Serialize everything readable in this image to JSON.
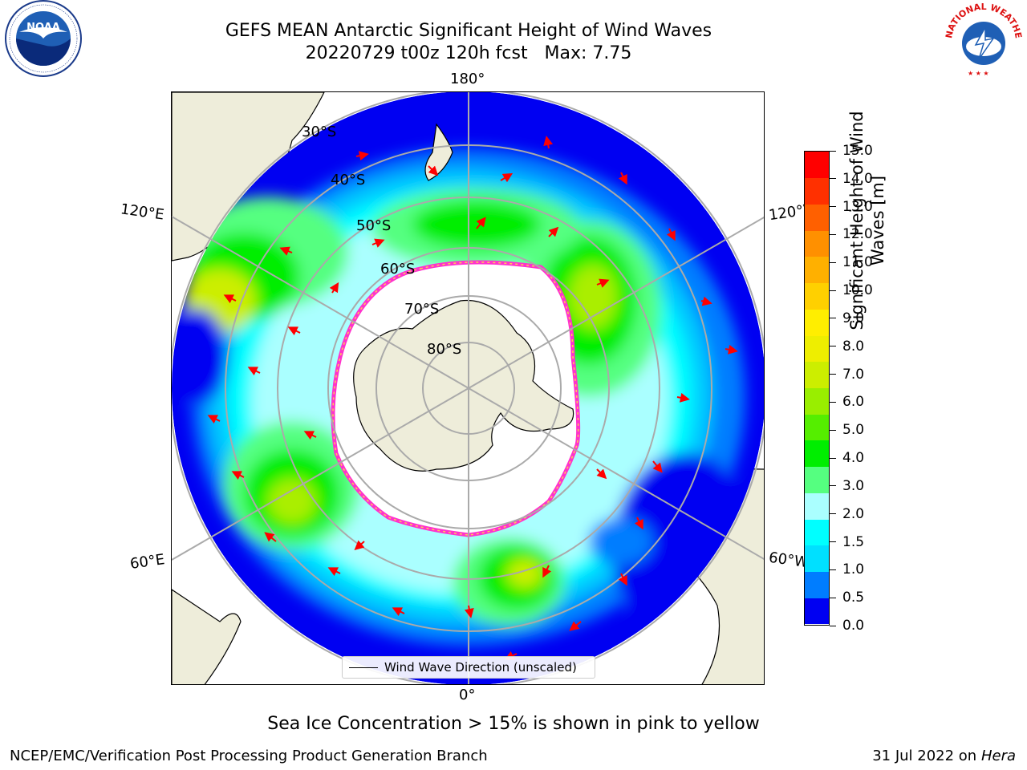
{
  "header": {
    "title": "GEFS MEAN Antarctic Significant Height of Wind Waves",
    "subtitle": "20220729 t00z 120h fcst   Max: 7.75"
  },
  "logos": {
    "left": {
      "name": "noaa-logo",
      "text": "NOAA",
      "ring_text": "NATIONAL OCEANIC AND ATMOSPHERIC ADMINISTRATION · U.S. DEPARTMENT OF COMMERCE"
    },
    "right": {
      "name": "nws-logo",
      "ring_text": "NATIONAL WEATHER SERVICE"
    }
  },
  "map": {
    "lon_labels": {
      "top": "180°",
      "bottom": "0°",
      "upper_left": "120°E",
      "upper_right": "120°W",
      "lower_left": "60°E",
      "lower_right": "60°W"
    },
    "lat_labels": [
      "30°S",
      "40°S",
      "50°S",
      "60°S",
      "70°S",
      "80°S"
    ],
    "legend_label": "Wind Wave Direction (unscaled)"
  },
  "colorbar": {
    "label_line1": "Significant Height of Wind",
    "label_line2": "Waves [m]",
    "ticks": [
      "15.0",
      "14.0",
      "13.0",
      "12.0",
      "11.0",
      "10.0",
      "9.0",
      "8.0",
      "7.0",
      "6.0",
      "5.0",
      "4.0",
      "3.0",
      "2.0",
      "1.5",
      "1.0",
      "0.5",
      "0.0"
    ],
    "colors": [
      "#0000f2",
      "#007dff",
      "#00e0ff",
      "#00ffff",
      "#aaffff",
      "#55ff80",
      "#00ee00",
      "#55ee00",
      "#99ee00",
      "#ccee00",
      "#eeee00",
      "#ffee00",
      "#ffd000",
      "#ffb000",
      "#ff9000",
      "#ff6000",
      "#ff3000",
      "#ff0000"
    ]
  },
  "note": "Sea Ice Concentration > 15% is shown in pink to yellow",
  "footer": {
    "left": "NCEP/EMC/Verification Post Processing Product Generation Branch",
    "date": "31 Jul 2022 on ",
    "host": "Hera"
  }
}
